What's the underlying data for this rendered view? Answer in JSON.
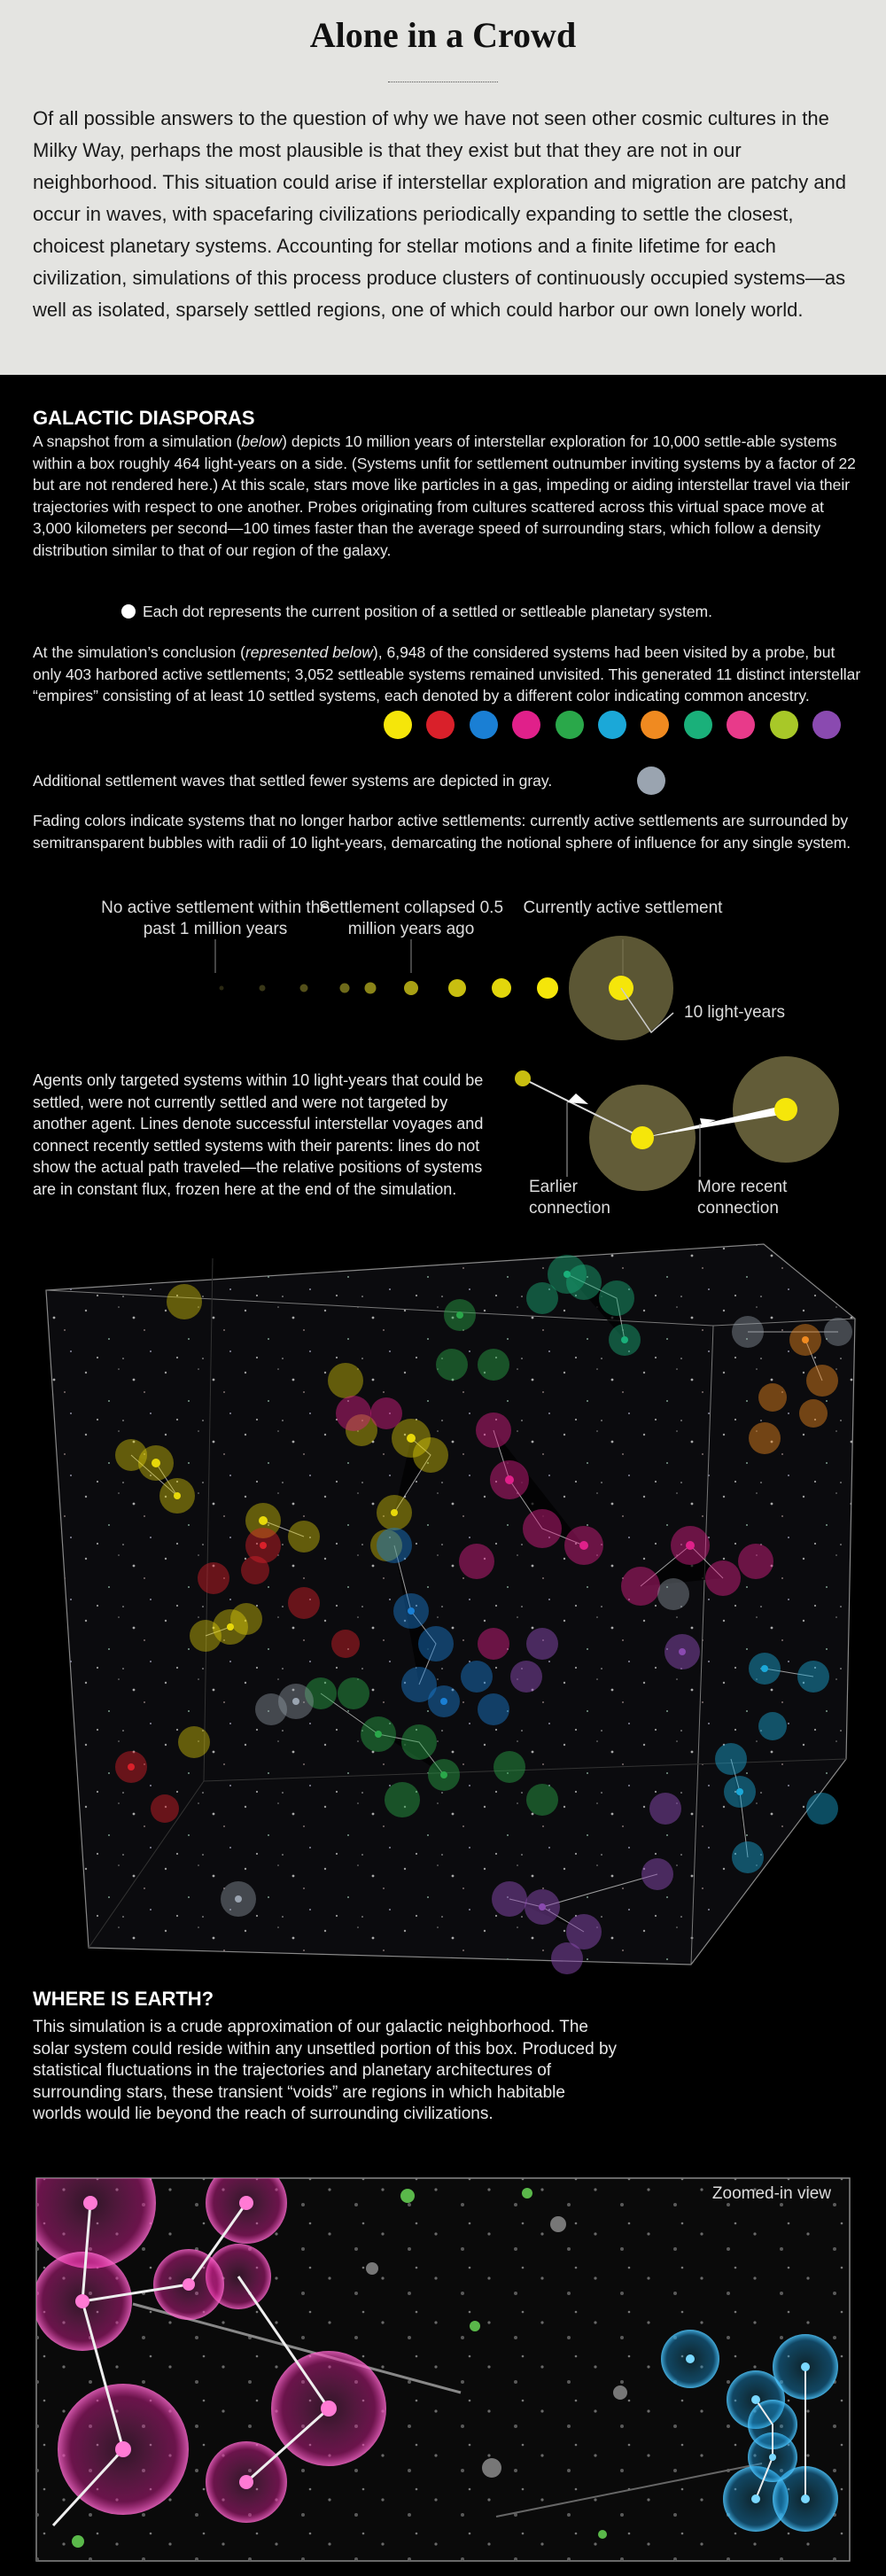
{
  "header": {
    "title": "Alone in a Crowd",
    "intro": "Of all possible answers to the question of why we have not seen other cosmic cultures in the Milky Way, perhaps the most plausible is that they exist but that they are not in our neighborhood. This situation could arise if interstellar exploration and migration are patchy and occur in waves, with spacefaring civilizations periodically expanding to settle the closest, choicest planetary systems. Accounting for stellar motions and a finite lifetime for each civilization, simulations of this process produce clusters of continuously occupied systems—as well as isolated, sparsely settled regions, one of which could harbor our own lonely world."
  },
  "diasporas": {
    "heading": "GALACTIC DIASPORAS",
    "snapshot": [
      "A snapshot from a simulation (",
      "below",
      ") depicts 10 million years of interstellar exploration for 10,000 settle-able systems within a box roughly 464 light-years on a side. (Systems unfit for settlement outnumber inviting systems by a factor of 22 but are not rendered here.) At this scale, stars move like particles in a gas, impeding or aiding interstellar travel via their trajectories with respect to one another. Probes originating from cultures scattered across this virtual space move at 3,000 kilometers per second—100 times faster than the average speed of surrounding stars, which follow a density distribution similar to that of our region of the galaxy."
    ],
    "dot_note": "Each dot represents the current position of a settled or settleable planetary system.",
    "conclusion": [
      "At the simulation’s conclusion (",
      "represented below",
      "), 6,948 of the considered systems had been visited by a probe, but only 403 harbored active settlements; 3,052 settleable systems remained unvisited. This generated 11 distinct interstellar “empires” consisting of at least 10 settled systems, each denoted by a different color indicating common ancestry."
    ],
    "gray_note": "Additional settlement waves that settled fewer systems are depicted in gray.",
    "fading": "Fading colors indicate systems that no longer harbor active settlements: currently active settlements are surrounded by semitransparent bubbles with radii of 10 light-years, demarcating the notional sphere of influence for any single system."
  },
  "legend": {
    "labels": [
      "No active settlement within the past 1 million years",
      "Settlement collapsed 0.5 million years ago",
      "Currently active settlement"
    ],
    "radius_label": "10 light-years"
  },
  "agents": {
    "text": "Agents only targeted systems within 10 light-years that could be settled, were not currently settled and were not targeted by another agent. Lines denote successful interstellar voyages and connect recently settled systems with their parents: lines do not show the actual path traveled—the relative positions of systems are in constant flux, frozen here at the end of the simulation.",
    "earlier": "Earlier connection",
    "recent": "More recent connection"
  },
  "earth": {
    "heading": "WHERE IS EARTH?",
    "text": "This simulation is a crude approximation of our galactic neighborhood. The solar system could reside within any unsettled portion of this box. Produced by statistical fluctuations in the trajectories and planetary architectures of surrounding stars, these transient “voids” are regions in which habitable worlds would lie beyond the reach of surrounding civilizations."
  },
  "zoom_label": "Zoomed-in view"
}
